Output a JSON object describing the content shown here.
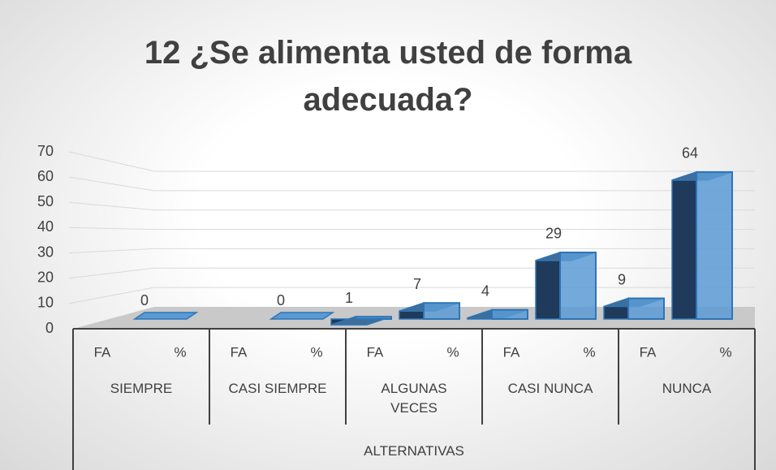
{
  "chart_data": {
    "type": "bar3d",
    "title": "12 ¿Se alimenta usted de forma adecuada?",
    "categories": [
      "FA",
      "%",
      "FA",
      "%",
      "FA",
      "%",
      "FA",
      "%",
      "FA",
      "%"
    ],
    "group_categories": [
      "SIEMPRE",
      "CASI SIEMPRE",
      "ALGUNAS VECES",
      "CASI NUNCA",
      "NUNCA"
    ],
    "xlabel": "ALTERNATIVAS",
    "values": [
      null,
      0,
      null,
      0,
      1,
      7,
      4,
      29,
      9,
      64
    ],
    "color": "#5b9bd5",
    "ylim": [
      0,
      70
    ],
    "yticks": [
      0,
      10,
      20,
      30,
      40,
      50,
      60,
      70
    ],
    "grid": true
  }
}
